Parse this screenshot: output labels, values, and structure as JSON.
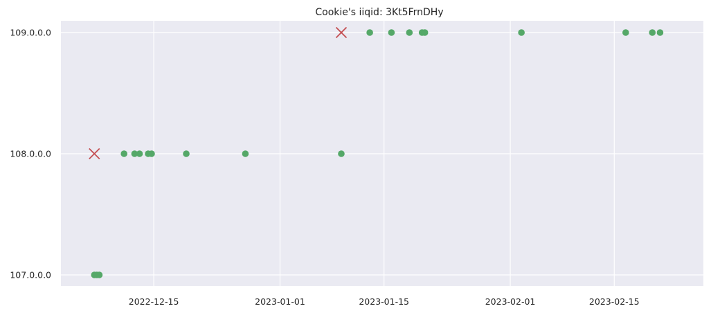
{
  "chart_data": {
    "type": "scatter",
    "title": "Cookie's iiqid: 3Kt5FrnDHy",
    "xlabel": "",
    "ylabel": "",
    "x_axis_type": "date",
    "xlim": [
      "2022-12-02T12:00",
      "2023-02-27"
    ],
    "y_categories": [
      "107.0.0.0",
      "108.0.0.0",
      "109.0.0.0"
    ],
    "x_ticks": [
      "2022-12-15",
      "2023-01-01",
      "2023-01-15",
      "2023-02-01",
      "2023-02-15"
    ],
    "grid": true,
    "background": "#eaeaf2",
    "series": [
      {
        "marker": "circle",
        "color": "#55a868",
        "points": [
          {
            "x": "2022-12-07",
            "y": "107.0.0.0"
          },
          {
            "x": "2022-12-07T08:00",
            "y": "107.0.0.0"
          },
          {
            "x": "2022-12-07T16:00",
            "y": "107.0.0.0"
          },
          {
            "x": "2022-12-11",
            "y": "108.0.0.0"
          },
          {
            "x": "2022-12-12T10:00",
            "y": "108.0.0.0"
          },
          {
            "x": "2022-12-13T02:00",
            "y": "108.0.0.0"
          },
          {
            "x": "2022-12-14T06:00",
            "y": "108.0.0.0"
          },
          {
            "x": "2022-12-14T17:00",
            "y": "108.0.0.0"
          },
          {
            "x": "2022-12-19T09:00",
            "y": "108.0.0.0"
          },
          {
            "x": "2022-12-27T08:00",
            "y": "108.0.0.0"
          },
          {
            "x": "2023-01-09T06:00",
            "y": "108.0.0.0"
          },
          {
            "x": "2023-01-13T02:00",
            "y": "109.0.0.0"
          },
          {
            "x": "2023-01-16T00:00",
            "y": "109.0.0.0"
          },
          {
            "x": "2023-01-18T10:00",
            "y": "109.0.0.0"
          },
          {
            "x": "2023-01-20T03:00",
            "y": "109.0.0.0"
          },
          {
            "x": "2023-01-20T12:00",
            "y": "109.0.0.0"
          },
          {
            "x": "2023-02-02T12:00",
            "y": "109.0.0.0"
          },
          {
            "x": "2023-02-16T13:00",
            "y": "109.0.0.0"
          },
          {
            "x": "2023-02-20T03:00",
            "y": "109.0.0.0"
          },
          {
            "x": "2023-02-21T04:00",
            "y": "109.0.0.0"
          }
        ]
      },
      {
        "marker": "x",
        "color": "#c44e52",
        "points": [
          {
            "x": "2022-12-07",
            "y": "108.0.0.0"
          },
          {
            "x": "2023-01-09T06:00",
            "y": "109.0.0.0"
          }
        ]
      }
    ]
  }
}
